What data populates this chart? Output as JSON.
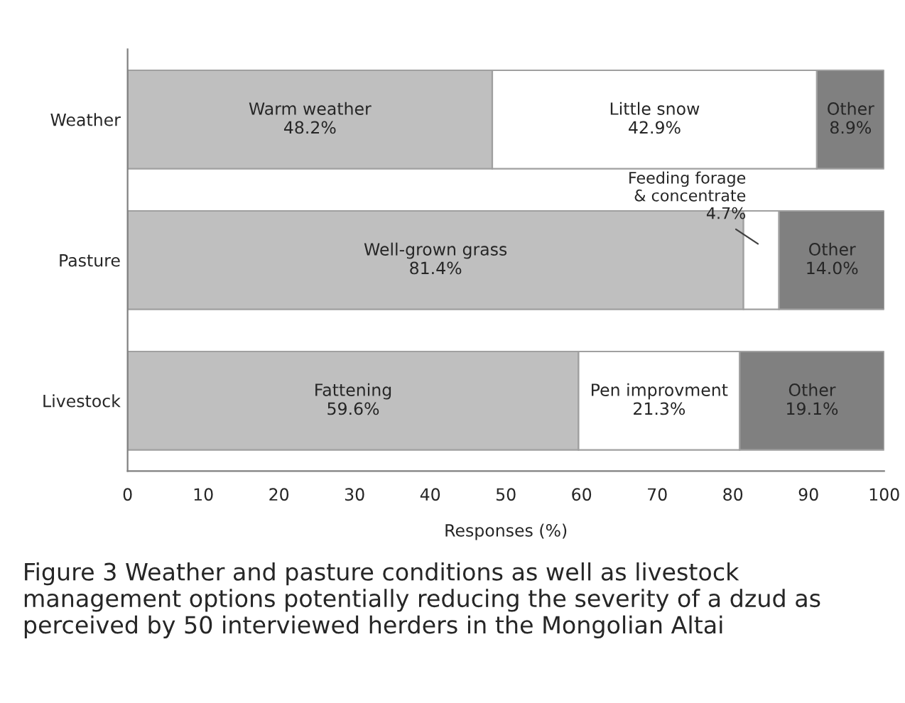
{
  "chart_data": {
    "type": "bar",
    "orientation": "horizontal",
    "stacked": true,
    "categories": [
      "Weather",
      "Pasture",
      "Livestock"
    ],
    "series": [
      {
        "color": "#bfbfbf",
        "values": [
          48.2,
          81.4,
          59.6
        ],
        "value_labels": [
          "Warm weather\n48.2%",
          "Well-grown grass\n81.4%",
          "Fattening\n59.6%"
        ]
      },
      {
        "color": "#ffffff",
        "values": [
          42.9,
          4.7,
          21.3
        ],
        "value_labels": [
          "Little snow\n42.9%",
          "Feeding forage\n& concentrate\n4.7%",
          "Pen improvment\n21.3%"
        ]
      },
      {
        "color": "#808080",
        "values": [
          8.9,
          14.0,
          19.1
        ],
        "value_labels": [
          "Other\n8.9%",
          "Other\n14.0%",
          "Other\n19.1%"
        ]
      }
    ],
    "xlim": [
      0,
      100
    ],
    "xticks": [
      0,
      10,
      20,
      30,
      40,
      50,
      60,
      70,
      80,
      90,
      100
    ],
    "xlabel": "Responses (%)",
    "grid": false,
    "legend": false,
    "annotations": [
      "Figure 3 Weather and pasture conditions as well as livestock management options potentially reducing the severity of a dzud as perceived by 50 interviewed herders in the Mongolian Altai"
    ]
  }
}
